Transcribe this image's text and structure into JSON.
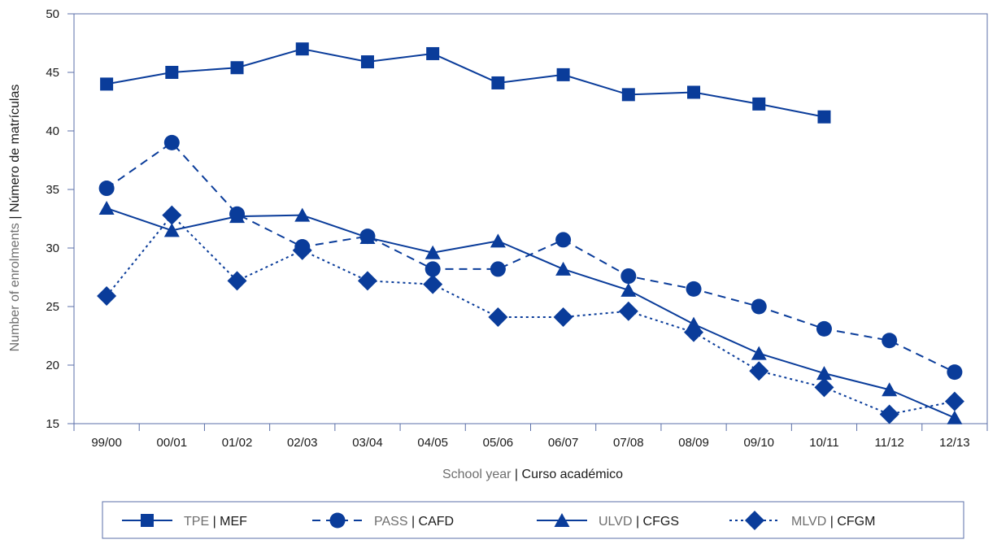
{
  "chart_data": {
    "type": "line",
    "categories": [
      "99/00",
      "00/01",
      "01/02",
      "02/03",
      "03/04",
      "04/05",
      "05/06",
      "06/07",
      "07/08",
      "08/09",
      "09/10",
      "10/11",
      "11/12",
      "12/13"
    ],
    "ylim": [
      15,
      50
    ],
    "yticks": [
      "15",
      "20",
      "25",
      "30",
      "35",
      "40",
      "45",
      "50"
    ],
    "xlabel": {
      "en": "School year",
      "es": "Curso académico"
    },
    "ylabel": {
      "en": "Number of enrolments",
      "es": "Número de matrículas"
    },
    "series": [
      {
        "name_en": "TPE",
        "name_es": "MEF",
        "marker": "square",
        "dash": "solid",
        "values": [
          44,
          45,
          45.4,
          47,
          45.9,
          46.6,
          44.1,
          44.8,
          43.1,
          43.3,
          42.3,
          41.2,
          null,
          null
        ]
      },
      {
        "name_en": "PASS",
        "name_es": "CAFD",
        "marker": "circle",
        "dash": "dashed",
        "values": [
          35.1,
          39,
          32.9,
          30.1,
          31,
          28.2,
          28.2,
          30.7,
          27.6,
          26.5,
          25,
          23.1,
          22.1,
          19.4
        ]
      },
      {
        "name_en": "ULVD",
        "name_es": "CFGS",
        "marker": "triangle",
        "dash": "solid",
        "values": [
          33.4,
          31.5,
          32.7,
          32.8,
          30.9,
          29.6,
          30.6,
          28.2,
          26.4,
          23.5,
          21,
          19.3,
          17.9,
          15.5
        ]
      },
      {
        "name_en": "MLVD",
        "name_es": "CFGM",
        "marker": "diamond",
        "dash": "dotted",
        "values": [
          25.9,
          32.8,
          27.2,
          29.8,
          27.2,
          26.9,
          24.1,
          24.1,
          24.6,
          22.8,
          19.5,
          18.1,
          15.8,
          16.9
        ]
      }
    ],
    "grid": false,
    "legend_position": "bottom",
    "color": "#0a3c9a",
    "axis_color": "#5b6fa8"
  }
}
